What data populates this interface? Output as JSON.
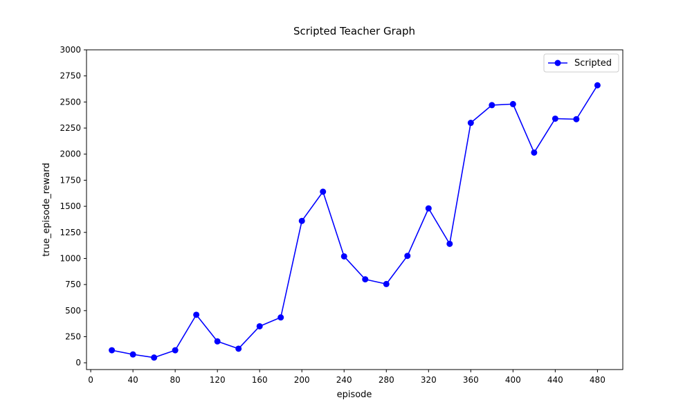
{
  "chart_data": {
    "type": "line",
    "title": "Scripted Teacher Graph",
    "xlabel": "episode",
    "ylabel": "true_episode_reward",
    "xlim": [
      -4,
      504
    ],
    "ylim": [
      -65,
      3000
    ],
    "x_ticks": [
      0,
      40,
      80,
      120,
      160,
      200,
      240,
      280,
      320,
      360,
      400,
      440,
      480
    ],
    "y_ticks": [
      0,
      250,
      500,
      750,
      1000,
      1250,
      1500,
      1750,
      2000,
      2250,
      2500,
      2750,
      3000
    ],
    "grid": false,
    "legend_position": "top-right",
    "series": [
      {
        "name": "Scripted",
        "color": "#0000ff",
        "marker": "circle",
        "x": [
          20,
          40,
          60,
          80,
          100,
          120,
          140,
          160,
          180,
          200,
          220,
          240,
          260,
          280,
          300,
          320,
          340,
          360,
          380,
          400,
          420,
          440,
          460,
          480
        ],
        "y": [
          120,
          80,
          50,
          120,
          460,
          205,
          135,
          350,
          435,
          1360,
          1640,
          1020,
          800,
          755,
          1025,
          1480,
          1140,
          2300,
          2470,
          2480,
          2015,
          2340,
          2335,
          2660
        ]
      }
    ]
  }
}
